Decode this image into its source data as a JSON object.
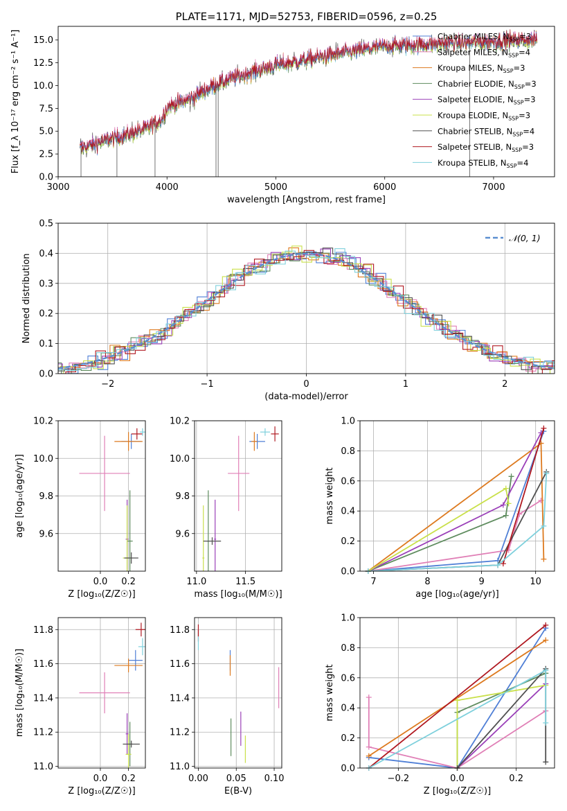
{
  "colors": {
    "chabrier_miles": "#4f7fd6",
    "salpeter_miles": "#e07fb6",
    "kroupa_miles": "#dd7a1f",
    "chabrier_elodie": "#5e8c5e",
    "salpeter_elodie": "#9a3fb8",
    "kroupa_elodie": "#c9e04a",
    "chabrier_stelib": "#505050",
    "salpeter_stelib": "#b01820",
    "kroupa_stelib": "#7ed0dc",
    "grid": "#b0b0b0",
    "normal_curve": "#5b8fd0"
  },
  "chart_data": [
    {
      "id": "spectrum",
      "type": "line",
      "title": "PLATE=1171, MJD=52753, FIBERID=0596, z=0.25",
      "xlabel": "wavelength [Angstrom, rest frame]",
      "ylabel": "Flux [f_λ 10⁻¹⁷ erg cm⁻² s⁻¹ A⁻¹]",
      "xlim": [
        3000,
        7560
      ],
      "ylim": [
        0,
        16.5
      ],
      "xticks": [
        "3000",
        "4000",
        "5000",
        "6000",
        "7000"
      ],
      "yticks": [
        "0.0",
        "2.5",
        "5.0",
        "7.5",
        "10.0",
        "12.5",
        "15.0"
      ],
      "grid": false,
      "legend_position": "top-right",
      "data_range": [
        3200,
        7400
      ],
      "series": [
        {
          "name": "Chabrier MILES, N_SSP=3",
          "color_key": "chabrier_miles"
        },
        {
          "name": "Salpeter MILES, N_SSP=4",
          "color_key": "salpeter_miles"
        },
        {
          "name": "Kroupa MILES, N_SSP=3",
          "color_key": "kroupa_miles"
        },
        {
          "name": "Chabrier ELODIE, N_SSP=3",
          "color_key": "chabrier_elodie"
        },
        {
          "name": "Salpeter ELODIE, N_SSP=3",
          "color_key": "salpeter_elodie"
        },
        {
          "name": "Kroupa ELODIE, N_SSP=3",
          "color_key": "kroupa_elodie"
        },
        {
          "name": "Chabrier STELIB, N_SSP=4",
          "color_key": "chabrier_stelib"
        },
        {
          "name": "Salpeter STELIB, N_SSP=3",
          "color_key": "salpeter_stelib"
        },
        {
          "name": "Kroupa STELIB, N_SSP=4",
          "color_key": "kroupa_stelib"
        }
      ],
      "continuum": [
        [
          3200,
          3.1
        ],
        [
          3400,
          3.8
        ],
        [
          3600,
          4.5
        ],
        [
          3800,
          5.2
        ],
        [
          3950,
          6.3
        ],
        [
          4000,
          7.6
        ],
        [
          4200,
          8.4
        ],
        [
          4400,
          9.8
        ],
        [
          4600,
          10.8
        ],
        [
          4800,
          11.5
        ],
        [
          5000,
          12.2
        ],
        [
          5200,
          12.6
        ],
        [
          5400,
          13.1
        ],
        [
          5600,
          13.5
        ],
        [
          5800,
          13.9
        ],
        [
          6000,
          14.3
        ],
        [
          6200,
          14.4
        ],
        [
          6400,
          14.5
        ],
        [
          6600,
          14.6
        ],
        [
          6800,
          14.7
        ],
        [
          7000,
          14.8
        ],
        [
          7200,
          14.9
        ],
        [
          7400,
          15.0
        ]
      ]
    },
    {
      "id": "residuals",
      "type": "step",
      "xlabel": "(data-model)/error",
      "ylabel": "Normed distribution",
      "xlim": [
        -2.5,
        2.5
      ],
      "ylim": [
        0,
        0.5
      ],
      "xticks": [
        "−2",
        "−1",
        "0",
        "1",
        "2"
      ],
      "yticks": [
        "0.0",
        "0.1",
        "0.2",
        "0.3",
        "0.4",
        "0.5"
      ],
      "grid": true,
      "legend_position": "top-right",
      "legend": "𝒩(0, 1)",
      "bin_width": 0.1
    },
    {
      "id": "age_vs_Z",
      "type": "errorbar",
      "xlabel": "Z [log₁₀(Z/Z☉)]",
      "ylabel": "age [log₁₀(age/yr)]",
      "xlim": [
        -0.3,
        0.32
      ],
      "ylim": [
        9.4,
        10.2
      ],
      "xticks": [
        "0.0",
        "0.2"
      ],
      "yticks": [
        "9.6",
        "9.8",
        "10.0",
        "10.2"
      ],
      "grid": true,
      "points": [
        {
          "color_key": "chabrier_miles",
          "x": 0.22,
          "xerr": 0.07,
          "y": 10.09,
          "yerr": 0.04
        },
        {
          "color_key": "salpeter_miles",
          "x": 0.03,
          "xerr": 0.18,
          "y": 9.92,
          "yerr": 0.2
        },
        {
          "color_key": "kroupa_miles",
          "x": 0.2,
          "xerr": 0.1,
          "y": 10.09,
          "yerr": 0.05
        },
        {
          "color_key": "chabrier_elodie",
          "x": 0.21,
          "xerr": 0.02,
          "y": 9.56,
          "yerr": 0.27
        },
        {
          "color_key": "salpeter_elodie",
          "x": 0.19,
          "xerr": 0.01,
          "y": 9.57,
          "yerr": 0.21
        },
        {
          "color_key": "kroupa_elodie",
          "x": 0.19,
          "xerr": 0.03,
          "y": 9.47,
          "yerr": 0.28
        },
        {
          "color_key": "chabrier_stelib",
          "x": 0.22,
          "xerr": 0.05,
          "y": 9.47,
          "yerr": 0.03
        },
        {
          "color_key": "salpeter_stelib",
          "x": 0.26,
          "xerr": 0.04,
          "y": 10.13,
          "yerr": 0.03
        },
        {
          "color_key": "kroupa_stelib",
          "x": 0.3,
          "xerr": 0.02,
          "y": 10.14,
          "yerr": 0.02
        }
      ]
    },
    {
      "id": "age_vs_mass",
      "type": "errorbar",
      "xlabel": "mass [log₁₀(M/M☉)]",
      "ylabel": "",
      "xlim": [
        10.98,
        11.87
      ],
      "ylim": [
        9.4,
        10.2
      ],
      "xticks": [
        "11.0",
        "11.5"
      ],
      "yticks": [
        "9.6",
        "9.8",
        "10.0",
        "10.2"
      ],
      "grid": true,
      "points": [
        {
          "color_key": "chabrier_miles",
          "x": 11.62,
          "xerr": 0.08,
          "y": 10.09,
          "yerr": 0.04
        },
        {
          "color_key": "salpeter_miles",
          "x": 11.43,
          "xerr": 0.11,
          "y": 9.92,
          "yerr": 0.2
        },
        {
          "color_key": "kroupa_miles",
          "x": 11.59,
          "xerr": 0.03,
          "y": 10.09,
          "yerr": 0.05
        },
        {
          "color_key": "chabrier_elodie",
          "x": 11.12,
          "xerr": 0.01,
          "y": 9.56,
          "yerr": 0.27
        },
        {
          "color_key": "salpeter_elodie",
          "x": 11.19,
          "xerr": 0.01,
          "y": 9.57,
          "yerr": 0.21
        },
        {
          "color_key": "kroupa_elodie",
          "x": 11.07,
          "xerr": 0.01,
          "y": 9.47,
          "yerr": 0.28
        },
        {
          "color_key": "chabrier_stelib",
          "x": 11.16,
          "xerr": 0.09,
          "y": 9.56,
          "yerr": 0.02
        },
        {
          "color_key": "salpeter_stelib",
          "x": 11.8,
          "xerr": 0.04,
          "y": 10.13,
          "yerr": 0.04
        },
        {
          "color_key": "kroupa_stelib",
          "x": 11.7,
          "xerr": 0.05,
          "y": 10.14,
          "yerr": 0.02
        }
      ]
    },
    {
      "id": "mass_weight_vs_age",
      "type": "line",
      "xlabel": "age [log₁₀(age/yr)]",
      "ylabel": "mass weight",
      "xlim": [
        6.75,
        10.35
      ],
      "ylim": [
        0,
        1
      ],
      "xticks": [
        "7",
        "8",
        "9",
        "10"
      ],
      "yticks": [
        "0.0",
        "0.2",
        "0.4",
        "0.6",
        "0.8",
        "1.0"
      ],
      "grid": true,
      "series": [
        {
          "color_key": "chabrier_miles",
          "points": [
            [
              6.9,
              0.0
            ],
            [
              9.3,
              0.07
            ],
            [
              10.15,
              0.93
            ]
          ]
        },
        {
          "color_key": "salpeter_miles",
          "points": [
            [
              6.9,
              0.0
            ],
            [
              9.5,
              0.14
            ],
            [
              9.7,
              0.38
            ],
            [
              10.1,
              0.47
            ]
          ]
        },
        {
          "color_key": "kroupa_miles",
          "points": [
            [
              6.9,
              0.0
            ],
            [
              10.1,
              0.85
            ],
            [
              10.15,
              0.08
            ]
          ]
        },
        {
          "color_key": "chabrier_elodie",
          "points": [
            [
              6.9,
              0.0
            ],
            [
              9.45,
              0.37
            ],
            [
              9.55,
              0.63
            ]
          ]
        },
        {
          "color_key": "salpeter_elodie",
          "points": [
            [
              6.9,
              0.0
            ],
            [
              9.4,
              0.44
            ],
            [
              10.1,
              0.92
            ]
          ]
        },
        {
          "color_key": "kroupa_elodie",
          "points": [
            [
              6.9,
              0.0
            ],
            [
              9.45,
              0.55
            ],
            [
              9.5,
              0.45
            ]
          ]
        },
        {
          "color_key": "chabrier_stelib",
          "points": [
            [
              6.9,
              0.0
            ],
            [
              9.3,
              0.04
            ],
            [
              10.2,
              0.66
            ]
          ]
        },
        {
          "color_key": "salpeter_stelib",
          "points": [
            [
              9.4,
              0.05
            ],
            [
              10.15,
              0.95
            ]
          ]
        },
        {
          "color_key": "kroupa_stelib",
          "points": [
            [
              6.9,
              0.0
            ],
            [
              9.3,
              0.04
            ],
            [
              10.15,
              0.3
            ],
            [
              10.2,
              0.65
            ]
          ]
        }
      ]
    },
    {
      "id": "mass_vs_Z",
      "type": "errorbar",
      "xlabel": "Z [log₁₀(Z/Z☉)]",
      "ylabel": "mass [log₁₀(M/M☉)]",
      "xlim": [
        -0.3,
        0.32
      ],
      "ylim": [
        10.99,
        11.87
      ],
      "xticks": [
        "0.0",
        "0.2"
      ],
      "yticks": [
        "11.0",
        "11.2",
        "11.4",
        "11.6",
        "11.8"
      ],
      "grid": true,
      "points": [
        {
          "color_key": "chabrier_miles",
          "x": 0.25,
          "xerr": 0.05,
          "y": 11.62,
          "yerr": 0.06
        },
        {
          "color_key": "salpeter_miles",
          "x": 0.03,
          "xerr": 0.18,
          "y": 11.43,
          "yerr": 0.12
        },
        {
          "color_key": "kroupa_miles",
          "x": 0.2,
          "xerr": 0.1,
          "y": 11.59,
          "yerr": 0.04
        },
        {
          "color_key": "chabrier_elodie",
          "x": 0.21,
          "xerr": 0.02,
          "y": 11.13,
          "yerr": 0.13
        },
        {
          "color_key": "salpeter_elodie",
          "x": 0.19,
          "xerr": 0.01,
          "y": 11.19,
          "yerr": 0.12
        },
        {
          "color_key": "kroupa_elodie",
          "x": 0.2,
          "xerr": 0.02,
          "y": 11.07,
          "yerr": 0.12
        },
        {
          "color_key": "chabrier_stelib",
          "x": 0.22,
          "xerr": 0.06,
          "y": 11.13,
          "yerr": 0.02
        },
        {
          "color_key": "salpeter_stelib",
          "x": 0.29,
          "xerr": 0.04,
          "y": 11.8,
          "yerr": 0.04
        },
        {
          "color_key": "kroupa_stelib",
          "x": 0.3,
          "xerr": 0.03,
          "y": 11.7,
          "yerr": 0.05
        }
      ]
    },
    {
      "id": "mass_vs_EBV",
      "type": "errorbar",
      "xlabel": "E(B-V)",
      "ylabel": "",
      "xlim": [
        -0.005,
        0.11
      ],
      "ylim": [
        10.99,
        11.87
      ],
      "xticks": [
        "0.00",
        "0.05",
        "0.10"
      ],
      "yticks": [
        "11.0",
        "11.2",
        "11.4",
        "11.6",
        "11.8"
      ],
      "grid": true,
      "points": [
        {
          "color_key": "chabrier_miles",
          "x": 0.042,
          "y": 11.62,
          "yerr": 0.06
        },
        {
          "color_key": "salpeter_miles",
          "x": 0.106,
          "y": 11.46,
          "yerr": 0.12
        },
        {
          "color_key": "kroupa_miles",
          "x": 0.042,
          "y": 11.59,
          "yerr": 0.06
        },
        {
          "color_key": "chabrier_elodie",
          "x": 0.043,
          "y": 11.17,
          "yerr": 0.11
        },
        {
          "color_key": "salpeter_elodie",
          "x": 0.056,
          "y": 11.22,
          "yerr": 0.1
        },
        {
          "color_key": "kroupa_elodie",
          "x": 0.062,
          "y": 11.1,
          "yerr": 0.08
        },
        {
          "color_key": "chabrier_stelib",
          "x": 0.0,
          "y": 11.78,
          "yerr": 0.02
        },
        {
          "color_key": "salpeter_stelib",
          "x": 0.0,
          "y": 11.78,
          "yerr": 0.05
        },
        {
          "color_key": "kroupa_stelib",
          "x": 0.0,
          "y": 11.72,
          "yerr": 0.04
        }
      ]
    },
    {
      "id": "mass_weight_vs_Z",
      "type": "line",
      "xlabel": "Z [log₁₀(Z/Z☉)]",
      "ylabel": "mass weight",
      "xlim": [
        -0.33,
        0.33
      ],
      "ylim": [
        0,
        1
      ],
      "xticks": [
        "−0.2",
        "0.0",
        "0.2"
      ],
      "yticks": [
        "0.0",
        "0.2",
        "0.4",
        "0.6",
        "0.8",
        "1.0"
      ],
      "grid": true,
      "series": [
        {
          "color_key": "chabrier_miles",
          "points": [
            [
              -0.3,
              0.07
            ],
            [
              0.0,
              0.0
            ],
            [
              0.3,
              0.93
            ]
          ]
        },
        {
          "color_key": "salpeter_miles",
          "points": [
            [
              -0.3,
              0.47
            ],
            [
              -0.3,
              0.14
            ],
            [
              0.0,
              0.0
            ],
            [
              0.3,
              0.38
            ]
          ]
        },
        {
          "color_key": "kroupa_miles",
          "points": [
            [
              -0.3,
              0.08
            ],
            [
              0.3,
              0.85
            ]
          ]
        },
        {
          "color_key": "chabrier_elodie",
          "points": [
            [
              0.0,
              0.0
            ],
            [
              0.0,
              0.37
            ],
            [
              0.3,
              0.63
            ]
          ]
        },
        {
          "color_key": "salpeter_elodie",
          "points": [
            [
              0.0,
              0.0
            ],
            [
              0.3,
              0.56
            ]
          ]
        },
        {
          "color_key": "kroupa_elodie",
          "points": [
            [
              0.0,
              0.0
            ],
            [
              0.0,
              0.45
            ],
            [
              0.3,
              0.55
            ]
          ]
        },
        {
          "color_key": "chabrier_stelib",
          "points": [
            [
              0.0,
              0.0
            ],
            [
              0.3,
              0.66
            ],
            [
              0.3,
              0.04
            ]
          ]
        },
        {
          "color_key": "salpeter_stelib",
          "points": [
            [
              -0.3,
              0.0
            ],
            [
              0.3,
              0.95
            ]
          ]
        },
        {
          "color_key": "kroupa_stelib",
          "points": [
            [
              -0.3,
              0.0
            ],
            [
              0.3,
              0.65
            ],
            [
              0.3,
              0.3
            ]
          ]
        }
      ]
    }
  ]
}
